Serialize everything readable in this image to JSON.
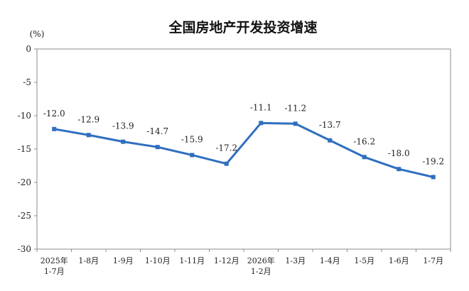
{
  "chart_data": {
    "type": "line",
    "title": "全国房地产开发投资增速",
    "unit": "(%)",
    "categories": [
      [
        "2025年",
        "1-7月"
      ],
      [
        "1-8月"
      ],
      [
        "1-9月"
      ],
      [
        "1-10月"
      ],
      [
        "1-11月"
      ],
      [
        "1-12月"
      ],
      [
        "2026年",
        "1-2月"
      ],
      [
        "1-3月"
      ],
      [
        "1-4月"
      ],
      [
        "1-5月"
      ],
      [
        "1-6月"
      ],
      [
        "1-7月"
      ]
    ],
    "series": [
      {
        "values": [
          -12.0,
          -12.9,
          -13.9,
          -14.7,
          -15.9,
          -17.2,
          -11.1,
          -11.2,
          -13.7,
          -16.2,
          -18.0,
          -19.2
        ],
        "labels": [
          "-12.0",
          "-12.9",
          "-13.9",
          "-14.7",
          "-15.9",
          "-17.2",
          "-11.1",
          "-11.2",
          "-13.7",
          "-16.2",
          "-18.0",
          "-19.2"
        ]
      }
    ],
    "yticks": [
      0,
      -5,
      -10,
      -15,
      -20,
      -25,
      -30
    ],
    "ytick_labels": [
      "0",
      "-5",
      "-10",
      "-15",
      "-20",
      "-25",
      "-30"
    ],
    "ylim": [
      -30,
      0
    ],
    "grid": false,
    "legend": "none",
    "colors": {
      "line": "#2f6fbf",
      "axis": "#8c8c8c",
      "text": "#222222"
    }
  }
}
